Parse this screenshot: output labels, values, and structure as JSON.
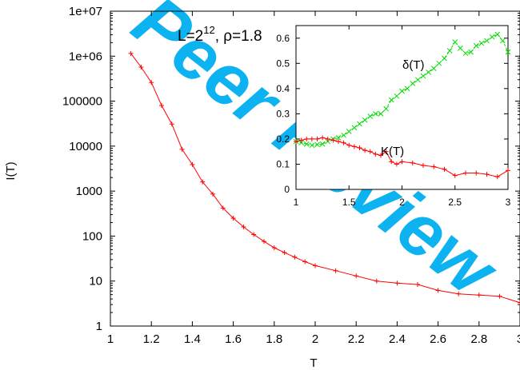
{
  "watermark": {
    "text": "Peer Review",
    "color": "#00AEEF"
  },
  "chart_data": [
    {
      "type": "line",
      "xlabel": "T",
      "ylabel": "I(T)",
      "annotation": {
        "base": "L=2",
        "exponent": "12",
        "suffix": ", ρ=1.8"
      },
      "xlim": [
        1,
        3
      ],
      "ylim": [
        1,
        10000000
      ],
      "yscale": "log",
      "xticks": [
        1,
        1.2,
        1.4,
        1.6,
        1.8,
        2,
        2.2,
        2.4,
        2.6,
        2.8,
        3
      ],
      "xtick_labels": [
        "1",
        "1.2",
        "1.4",
        "1.6",
        "1.8",
        "2",
        "2.2",
        "2.4",
        "2.6",
        "2.8",
        "3"
      ],
      "yticks": [
        1,
        10,
        100,
        1000,
        10000,
        100000,
        1000000,
        10000000
      ],
      "ytick_labels": [
        "1",
        "10",
        "100",
        "1000",
        "10000",
        "100000",
        "1e+06",
        "1e+07"
      ],
      "grid": false,
      "series": [
        {
          "color": "#ff0000",
          "x": [
            1.1,
            1.15,
            1.2,
            1.25,
            1.3,
            1.35,
            1.4,
            1.45,
            1.5,
            1.55,
            1.6,
            1.65,
            1.7,
            1.75,
            1.8,
            1.85,
            1.9,
            1.95,
            2.0,
            2.1,
            2.2,
            2.3,
            2.4,
            2.5,
            2.6,
            2.7,
            2.8,
            2.9,
            3.0
          ],
          "y": [
            1150000,
            570000,
            260000,
            80000,
            31000,
            8500,
            3900,
            1600,
            860,
            420,
            250,
            160,
            108,
            76,
            55,
            43,
            34,
            27,
            22,
            17,
            13,
            10,
            9,
            8.4,
            6.2,
            5.2,
            4.9,
            4.6,
            3.3
          ]
        }
      ]
    },
    {
      "type": "line",
      "xlim": [
        1,
        3
      ],
      "ylim": [
        0,
        0.65
      ],
      "xticks": [
        1,
        1.5,
        2,
        2.5,
        3
      ],
      "xtick_labels": [
        "1",
        "1.5",
        "2",
        "2.5",
        "3"
      ],
      "yticks": [
        0,
        0.1,
        0.2,
        0.3,
        0.4,
        0.5,
        0.6
      ],
      "ytick_labels": [
        "0",
        "0.1",
        "0.2",
        "0.3",
        "0.4",
        "0.5",
        "0.6"
      ],
      "grid": false,
      "series": [
        {
          "name": "δ(T)",
          "color": "#00dd00",
          "x": [
            1.0,
            1.05,
            1.1,
            1.15,
            1.2,
            1.25,
            1.3,
            1.35,
            1.4,
            1.45,
            1.5,
            1.55,
            1.6,
            1.65,
            1.7,
            1.75,
            1.8,
            1.85,
            1.9,
            1.95,
            2.0,
            2.05,
            2.1,
            2.15,
            2.2,
            2.25,
            2.3,
            2.35,
            2.4,
            2.45,
            2.5,
            2.55,
            2.6,
            2.65,
            2.7,
            2.75,
            2.8,
            2.85,
            2.9,
            2.95,
            3.0
          ],
          "y": [
            0.19,
            0.185,
            0.18,
            0.175,
            0.178,
            0.18,
            0.19,
            0.2,
            0.205,
            0.215,
            0.23,
            0.245,
            0.26,
            0.275,
            0.29,
            0.3,
            0.3,
            0.32,
            0.355,
            0.37,
            0.39,
            0.4,
            0.42,
            0.435,
            0.45,
            0.465,
            0.48,
            0.5,
            0.52,
            0.55,
            0.585,
            0.56,
            0.54,
            0.545,
            0.57,
            0.58,
            0.59,
            0.605,
            0.615,
            0.59,
            0.545
          ]
        },
        {
          "name": "K(T)",
          "color": "#ff0000",
          "x": [
            1.0,
            1.05,
            1.1,
            1.15,
            1.2,
            1.25,
            1.3,
            1.35,
            1.4,
            1.45,
            1.5,
            1.55,
            1.6,
            1.65,
            1.7,
            1.75,
            1.8,
            1.85,
            1.9,
            1.95,
            2.0,
            2.1,
            2.2,
            2.3,
            2.4,
            2.5,
            2.6,
            2.7,
            2.8,
            2.9,
            3.0
          ],
          "y": [
            0.19,
            0.195,
            0.2,
            0.2,
            0.2,
            0.205,
            0.2,
            0.195,
            0.19,
            0.185,
            0.175,
            0.17,
            0.165,
            0.155,
            0.15,
            0.14,
            0.135,
            0.15,
            0.11,
            0.1,
            0.11,
            0.105,
            0.095,
            0.09,
            0.08,
            0.055,
            0.065,
            0.065,
            0.06,
            0.05,
            0.075
          ]
        }
      ]
    }
  ]
}
